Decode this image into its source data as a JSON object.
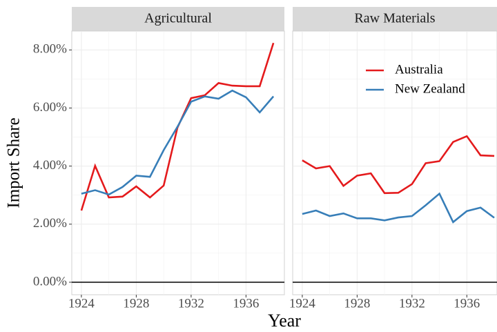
{
  "chart_data": [
    {
      "type": "line",
      "title": "Agricultural",
      "ylabel": "Import Share",
      "xlabel": "Year",
      "x": [
        1924,
        1925,
        1926,
        1927,
        1928,
        1929,
        1930,
        1931,
        1932,
        1933,
        1934,
        1935,
        1936,
        1937,
        1938
      ],
      "series": [
        {
          "name": "Australia",
          "color": "#e41a1c",
          "values": [
            2.47,
            4.01,
            2.92,
            2.95,
            3.3,
            2.92,
            3.33,
            5.32,
            6.34,
            6.44,
            6.86,
            6.77,
            6.75,
            6.75,
            8.24
          ]
        },
        {
          "name": "New Zealand",
          "color": "#377eb8",
          "values": [
            3.05,
            3.17,
            3.02,
            3.28,
            3.67,
            3.63,
            4.55,
            5.35,
            6.22,
            6.4,
            6.32,
            6.6,
            6.37,
            5.85,
            6.4
          ]
        }
      ],
      "xlim": [
        1923.3,
        1938.8
      ],
      "xticks": [
        1924,
        1928,
        1932,
        1936
      ],
      "ylim": [
        -0.43,
        8.65
      ],
      "yticks": [
        {
          "value": 0,
          "label": "0.00%"
        },
        {
          "value": 2,
          "label": "2.00%"
        },
        {
          "value": 4,
          "label": "4.00%"
        },
        {
          "value": 6,
          "label": "6.00%"
        },
        {
          "value": 8,
          "label": "8.00%"
        }
      ],
      "hline": 0,
      "grid": true
    },
    {
      "type": "line",
      "title": "Raw Materials",
      "legend": "top-right",
      "x": [
        1924,
        1925,
        1926,
        1927,
        1928,
        1929,
        1930,
        1931,
        1932,
        1933,
        1934,
        1935,
        1936,
        1937,
        1938
      ],
      "series": [
        {
          "name": "Australia",
          "color": "#e41a1c",
          "values": [
            4.2,
            3.92,
            4.0,
            3.32,
            3.67,
            3.75,
            3.07,
            3.08,
            3.38,
            4.1,
            4.17,
            4.83,
            5.03,
            4.37,
            4.35
          ]
        },
        {
          "name": "New Zealand",
          "color": "#377eb8",
          "values": [
            2.35,
            2.47,
            2.28,
            2.37,
            2.2,
            2.2,
            2.13,
            2.23,
            2.28,
            2.65,
            3.05,
            2.07,
            2.45,
            2.57,
            2.22
          ]
        }
      ],
      "xlim": [
        1923.3,
        1938.2
      ],
      "xticks": [
        1924,
        1928,
        1932,
        1936
      ],
      "ylim": [
        -0.43,
        8.65
      ],
      "yticks": [
        {
          "value": 0,
          "label": "0.00%"
        },
        {
          "value": 2,
          "label": "2.00%"
        },
        {
          "value": 4,
          "label": "4.00%"
        },
        {
          "value": 6,
          "label": "6.00%"
        },
        {
          "value": 8,
          "label": "8.00%"
        }
      ],
      "hline": 0,
      "grid": true
    }
  ]
}
